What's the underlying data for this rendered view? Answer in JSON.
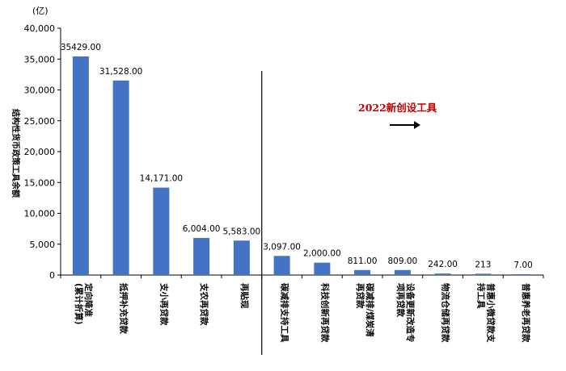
{
  "chart_data": {
    "type": "bar",
    "title": "",
    "unit_label": "(亿)",
    "ylabel": "结构性货币政策工具余额",
    "xlabel": "",
    "ylim": [
      0,
      40000
    ],
    "yticks": [
      "0",
      "5,000",
      "10,000",
      "15,000",
      "20,000",
      "25,000",
      "30,000",
      "35,000",
      "40,000"
    ],
    "ytick_values": [
      0,
      5000,
      10000,
      15000,
      20000,
      25000,
      30000,
      35000,
      40000
    ],
    "grid": false,
    "bar_color": "#4472c4",
    "categories": [
      [
        "定向降准",
        "(累计折算)"
      ],
      [
        "抵押补充贷款"
      ],
      [
        "支小再贷款"
      ],
      [
        "支农再贷款"
      ],
      [
        "再贴现"
      ],
      [
        "碳减排支持工具"
      ],
      [
        "科技创新再贷款"
      ],
      [
        "碳减排/煤炭清",
        "再贷款"
      ],
      [
        "设备更新改造专",
        "项再贷款"
      ],
      [
        "物流仓储再贷款"
      ],
      [
        "普惠小微贷款支",
        "持工具"
      ],
      [
        "普惠养老再贷款"
      ]
    ],
    "values": [
      35429,
      31528,
      14171,
      6004,
      5583,
      3097,
      2000,
      811,
      809,
      242,
      213,
      7
    ],
    "data_labels": [
      "35429.00",
      "31,528.00",
      "14,171.00",
      "6,004.00",
      "5,583.00",
      "3,097.00",
      "2,000.00",
      "811.00",
      "809.00",
      "242.00",
      "213",
      "7.00"
    ],
    "annotation": {
      "text": "2022新创设工具",
      "arrow": "right",
      "divider_after_index": 4
    }
  }
}
